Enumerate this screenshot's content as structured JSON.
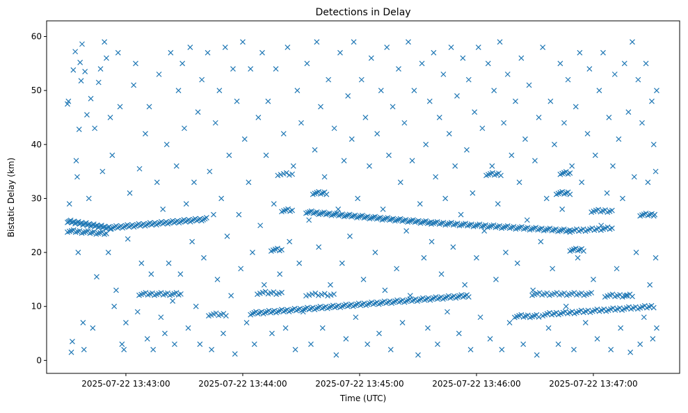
{
  "chart_data": {
    "type": "scatter",
    "title": "Detections in Delay",
    "xlabel": "Time (UTC)",
    "ylabel": "Bistatic Delay (km)",
    "x_units": "seconds after 2025-07-22 13:42:00 UTC",
    "xlim": [
      19.3,
      344.3
    ],
    "ylim": [
      -2.4,
      62.9
    ],
    "x_ticks": [
      {
        "value": 60,
        "label": "2025-07-22 13:43:00"
      },
      {
        "value": 120,
        "label": "2025-07-22 13:44:00"
      },
      {
        "value": 180,
        "label": "2025-07-22 13:45:00"
      },
      {
        "value": 240,
        "label": "2025-07-22 13:46:00"
      },
      {
        "value": 300,
        "label": "2025-07-22 13:47:00"
      }
    ],
    "y_ticks": [
      0,
      10,
      20,
      30,
      40,
      50,
      60
    ],
    "marker": "x",
    "color": "#1f77b4",
    "grid": false,
    "tracks": [
      {
        "t": [
          30,
          52
        ],
        "v": [
          25.8,
          24.5
        ],
        "n": 40
      },
      {
        "t": [
          30,
          50
        ],
        "v": [
          24.0,
          23.5
        ],
        "n": 20
      },
      {
        "t": [
          52.5,
          101.4
        ],
        "v": [
          24.6,
          26.2
        ],
        "n": 60
      },
      {
        "t": [
          152.5,
          216.8
        ],
        "v": [
          27.5,
          25.5
        ],
        "n": 70
      },
      {
        "t": [
          216.8,
          288
        ],
        "v": [
          25.5,
          24.0
        ],
        "n": 70
      },
      {
        "t": [
          124,
          236
        ],
        "v": [
          8.7,
          12.0
        ],
        "n": 120
      },
      {
        "t": [
          288,
          309.6
        ],
        "v": [
          24.0,
          24.5
        ],
        "n": 20
      },
      {
        "t": [
          274,
          331
        ],
        "v": [
          8.5,
          10.0
        ],
        "n": 50
      },
      {
        "t": [
          66.8,
          88.2
        ],
        "v": [
          12.3,
          12.3
        ],
        "n": 20
      },
      {
        "t": [
          102.5,
          111.4
        ],
        "v": [
          8.5,
          8.5
        ],
        "n": 8
      },
      {
        "t": [
          127.5,
          140
        ],
        "v": [
          12.5,
          12.5
        ],
        "n": 10
      },
      {
        "t": [
          134.6,
          140
        ],
        "v": [
          20.5,
          20.5
        ],
        "n": 6
      },
      {
        "t": [
          140,
          145.4
        ],
        "v": [
          27.8,
          27.8
        ],
        "n": 6
      },
      {
        "t": [
          138,
          145.4
        ],
        "v": [
          34.5,
          34.5
        ],
        "n": 6
      },
      {
        "t": [
          156,
          163
        ],
        "v": [
          31.0,
          31.0
        ],
        "n": 8
      },
      {
        "t": [
          152.5,
          166.8
        ],
        "v": [
          12.2,
          12.2
        ],
        "n": 10
      },
      {
        "t": [
          245,
          252.5
        ],
        "v": [
          34.5,
          34.5
        ],
        "n": 8
      },
      {
        "t": [
          259.6,
          272
        ],
        "v": [
          8.2,
          8.2
        ],
        "n": 12
      },
      {
        "t": [
          268.6,
          299
        ],
        "v": [
          12.3,
          12.3
        ],
        "n": 25
      },
      {
        "t": [
          281,
          288
        ],
        "v": [
          31.0,
          31.0
        ],
        "n": 8
      },
      {
        "t": [
          283,
          288
        ],
        "v": [
          34.7,
          34.7
        ],
        "n": 6
      },
      {
        "t": [
          288,
          295
        ],
        "v": [
          20.5,
          20.5
        ],
        "n": 8
      },
      {
        "t": [
          299,
          309.6
        ],
        "v": [
          27.7,
          27.7
        ],
        "n": 10
      },
      {
        "t": [
          306,
          320
        ],
        "v": [
          12.0,
          12.0
        ],
        "n": 12
      },
      {
        "t": [
          324,
          331
        ],
        "v": [
          27.0,
          27.0
        ],
        "n": 8
      }
    ],
    "points": [
      [
        30,
        47.5
      ],
      [
        30.5,
        48
      ],
      [
        31,
        29
      ],
      [
        32,
        1.5
      ],
      [
        32.5,
        3.5
      ],
      [
        33,
        53.8
      ],
      [
        34,
        57.2
      ],
      [
        34.5,
        37
      ],
      [
        35,
        34
      ],
      [
        35.5,
        20
      ],
      [
        36,
        42.8
      ],
      [
        36.5,
        55.2
      ],
      [
        37,
        51.8
      ],
      [
        37.5,
        58.6
      ],
      [
        38,
        7
      ],
      [
        38.5,
        2
      ],
      [
        39,
        53.5
      ],
      [
        40,
        45.5
      ],
      [
        41,
        30
      ],
      [
        42,
        48.5
      ],
      [
        43,
        6
      ],
      [
        44,
        43
      ],
      [
        45,
        15.5
      ],
      [
        46,
        51.5
      ],
      [
        47,
        54
      ],
      [
        48,
        35
      ],
      [
        49,
        59
      ],
      [
        50,
        56
      ],
      [
        51,
        20
      ],
      [
        52,
        45
      ],
      [
        53,
        38
      ],
      [
        54,
        10
      ],
      [
        55,
        13
      ],
      [
        56,
        57
      ],
      [
        57,
        47
      ],
      [
        58,
        3
      ],
      [
        59,
        2
      ],
      [
        60,
        7
      ],
      [
        61,
        22.5
      ],
      [
        62,
        31
      ],
      [
        64,
        51
      ],
      [
        65,
        55
      ],
      [
        66,
        9
      ],
      [
        67,
        35.5
      ],
      [
        68,
        18
      ],
      [
        70,
        42
      ],
      [
        71,
        4
      ],
      [
        72,
        47
      ],
      [
        73,
        16
      ],
      [
        74,
        2
      ],
      [
        76,
        33
      ],
      [
        77,
        53
      ],
      [
        78,
        8
      ],
      [
        79,
        28
      ],
      [
        80,
        5
      ],
      [
        81,
        40
      ],
      [
        82,
        18
      ],
      [
        83,
        57
      ],
      [
        84,
        11
      ],
      [
        85,
        3
      ],
      [
        86,
        36
      ],
      [
        87,
        50
      ],
      [
        88,
        16
      ],
      [
        89,
        55
      ],
      [
        90,
        43
      ],
      [
        91,
        29
      ],
      [
        92,
        6
      ],
      [
        93,
        58
      ],
      [
        94,
        22
      ],
      [
        95,
        33
      ],
      [
        96,
        10
      ],
      [
        97,
        46
      ],
      [
        98,
        3
      ],
      [
        99,
        52
      ],
      [
        100,
        19
      ],
      [
        102,
        57
      ],
      [
        103,
        35
      ],
      [
        104,
        2
      ],
      [
        105,
        27
      ],
      [
        106,
        44
      ],
      [
        107,
        15
      ],
      [
        108,
        50
      ],
      [
        109,
        30
      ],
      [
        110,
        5
      ],
      [
        111,
        58
      ],
      [
        112,
        23
      ],
      [
        113,
        38
      ],
      [
        114,
        12
      ],
      [
        115,
        54
      ],
      [
        116,
        1.2
      ],
      [
        117,
        48
      ],
      [
        118,
        27
      ],
      [
        119,
        17
      ],
      [
        120,
        59
      ],
      [
        121,
        41
      ],
      [
        122,
        7
      ],
      [
        123,
        33
      ],
      [
        124,
        54
      ],
      [
        125,
        20
      ],
      [
        126,
        3
      ],
      [
        128,
        45
      ],
      [
        129,
        25
      ],
      [
        130,
        57
      ],
      [
        131,
        14
      ],
      [
        132,
        38
      ],
      [
        133,
        48
      ],
      [
        135,
        5
      ],
      [
        136,
        29
      ],
      [
        137,
        54
      ],
      [
        139,
        16
      ],
      [
        141,
        42
      ],
      [
        142,
        6
      ],
      [
        143,
        58
      ],
      [
        144,
        22
      ],
      [
        146,
        36
      ],
      [
        147,
        2
      ],
      [
        148,
        50
      ],
      [
        149,
        18
      ],
      [
        150,
        44
      ],
      [
        151,
        9
      ],
      [
        153,
        55
      ],
      [
        154,
        26
      ],
      [
        155,
        3
      ],
      [
        157,
        39
      ],
      [
        158,
        59
      ],
      [
        159,
        21
      ],
      [
        160,
        47
      ],
      [
        161,
        6
      ],
      [
        162,
        34
      ],
      [
        164,
        52
      ],
      [
        165,
        14
      ],
      [
        167,
        43
      ],
      [
        168,
        1
      ],
      [
        169,
        28
      ],
      [
        170,
        57
      ],
      [
        171,
        18
      ],
      [
        172,
        37
      ],
      [
        173,
        4
      ],
      [
        174,
        49
      ],
      [
        175,
        23
      ],
      [
        176,
        41
      ],
      [
        177,
        59
      ],
      [
        178,
        8
      ],
      [
        179,
        30
      ],
      [
        181,
        52
      ],
      [
        182,
        15
      ],
      [
        183,
        45
      ],
      [
        184,
        3
      ],
      [
        185,
        36
      ],
      [
        186,
        56
      ],
      [
        188,
        20
      ],
      [
        189,
        42
      ],
      [
        190,
        5
      ],
      [
        191,
        50
      ],
      [
        192,
        28
      ],
      [
        193,
        13
      ],
      [
        194,
        58
      ],
      [
        195,
        38
      ],
      [
        196,
        2
      ],
      [
        197,
        47
      ],
      [
        199,
        17
      ],
      [
        200,
        54
      ],
      [
        201,
        33
      ],
      [
        202,
        7
      ],
      [
        203,
        44
      ],
      [
        204,
        24
      ],
      [
        205,
        59
      ],
      [
        206,
        12
      ],
      [
        207,
        37
      ],
      [
        208,
        50
      ],
      [
        210,
        1
      ],
      [
        211,
        29
      ],
      [
        212,
        55
      ],
      [
        213,
        19
      ],
      [
        214,
        40
      ],
      [
        215,
        6
      ],
      [
        216,
        48
      ],
      [
        217,
        22
      ],
      [
        218,
        57
      ],
      [
        219,
        34
      ],
      [
        220,
        3
      ],
      [
        221,
        45
      ],
      [
        222,
        16
      ],
      [
        223,
        53
      ],
      [
        224,
        30
      ],
      [
        225,
        9
      ],
      [
        226,
        42
      ],
      [
        227,
        58
      ],
      [
        228,
        21
      ],
      [
        229,
        36
      ],
      [
        230,
        49
      ],
      [
        231,
        5
      ],
      [
        232,
        27
      ],
      [
        233,
        56
      ],
      [
        234,
        14
      ],
      [
        235,
        39
      ],
      [
        236,
        52
      ],
      [
        237,
        2
      ],
      [
        238,
        31
      ],
      [
        239,
        46
      ],
      [
        240,
        19
      ],
      [
        241,
        58
      ],
      [
        242,
        8
      ],
      [
        243,
        43
      ],
      [
        244,
        24
      ],
      [
        246,
        55
      ],
      [
        247,
        4
      ],
      [
        248,
        36
      ],
      [
        249,
        50
      ],
      [
        250,
        15
      ],
      [
        251,
        29
      ],
      [
        252,
        59
      ],
      [
        253,
        2
      ],
      [
        254,
        44
      ],
      [
        255,
        20
      ],
      [
        256,
        53
      ],
      [
        257,
        7
      ],
      [
        258,
        38
      ],
      [
        260,
        48
      ],
      [
        261,
        18
      ],
      [
        262,
        33
      ],
      [
        263,
        56
      ],
      [
        264,
        3
      ],
      [
        265,
        41
      ],
      [
        266,
        26
      ],
      [
        267,
        51
      ],
      [
        269,
        13
      ],
      [
        270,
        37
      ],
      [
        271,
        1
      ],
      [
        272,
        45
      ],
      [
        273,
        22
      ],
      [
        274,
        58
      ],
      [
        276,
        30
      ],
      [
        277,
        6
      ],
      [
        278,
        48
      ],
      [
        279,
        17
      ],
      [
        280,
        40
      ],
      [
        282,
        3
      ],
      [
        283,
        55
      ],
      [
        284,
        28
      ],
      [
        285,
        44
      ],
      [
        286,
        10
      ],
      [
        287,
        52
      ],
      [
        289,
        36
      ],
      [
        290,
        2
      ],
      [
        291,
        47
      ],
      [
        292,
        19
      ],
      [
        293,
        57
      ],
      [
        294,
        33
      ],
      [
        296,
        7
      ],
      [
        297,
        42
      ],
      [
        298,
        54
      ],
      [
        300,
        15
      ],
      [
        301,
        38
      ],
      [
        302,
        4
      ],
      [
        303,
        50
      ],
      [
        304,
        25
      ],
      [
        305,
        57
      ],
      [
        307,
        31
      ],
      [
        308,
        45
      ],
      [
        309,
        2
      ],
      [
        310,
        36
      ],
      [
        311,
        53
      ],
      [
        312,
        17
      ],
      [
        313,
        41
      ],
      [
        314,
        6
      ],
      [
        315,
        30
      ],
      [
        316,
        55
      ],
      [
        317,
        12
      ],
      [
        318,
        46
      ],
      [
        319,
        1.5
      ],
      [
        320,
        59
      ],
      [
        321,
        34
      ],
      [
        322,
        20
      ],
      [
        323,
        52
      ],
      [
        324,
        3
      ],
      [
        325,
        44
      ],
      [
        326,
        8
      ],
      [
        327,
        55
      ],
      [
        328,
        33
      ],
      [
        329,
        14
      ],
      [
        330,
        48
      ],
      [
        330.5,
        4
      ],
      [
        331,
        40
      ],
      [
        331.5,
        27
      ],
      [
        332,
        35
      ],
      [
        332,
        19
      ],
      [
        332.5,
        6
      ],
      [
        332.5,
        50
      ]
    ]
  }
}
